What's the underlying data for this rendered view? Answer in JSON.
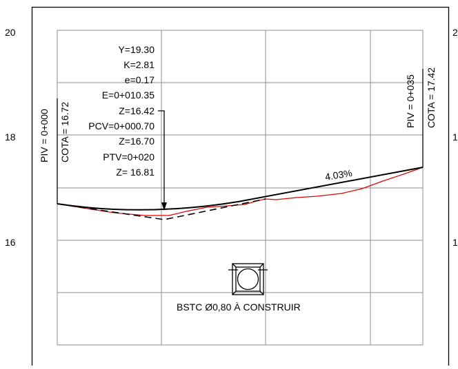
{
  "axis": {
    "left_ticks": [
      "20",
      "18",
      "16"
    ],
    "right_ticks_partial": [
      "2",
      "1",
      "1"
    ]
  },
  "curve_info": {
    "lines": [
      "Y=19.30",
      "K=2.81",
      "e=0.17",
      "E=0+010.35",
      "Z=16.42",
      "PCV=0+000.70",
      "Z=16.70",
      "PTV=0+020",
      "Z= 16.81"
    ]
  },
  "left_station": {
    "piv": "PIV = 0+000",
    "cota": "COTA =  16.72"
  },
  "right_station": {
    "piv": "PIV = 0+035",
    "cota": "COTA =  17.42"
  },
  "grade": "4.03%",
  "culvert": {
    "label": "BSTC Ø0,80 À CONSTRUIR"
  },
  "colors": {
    "terrain": "#e00000",
    "design": "#000000",
    "grid": "#8c8c8c"
  }
}
